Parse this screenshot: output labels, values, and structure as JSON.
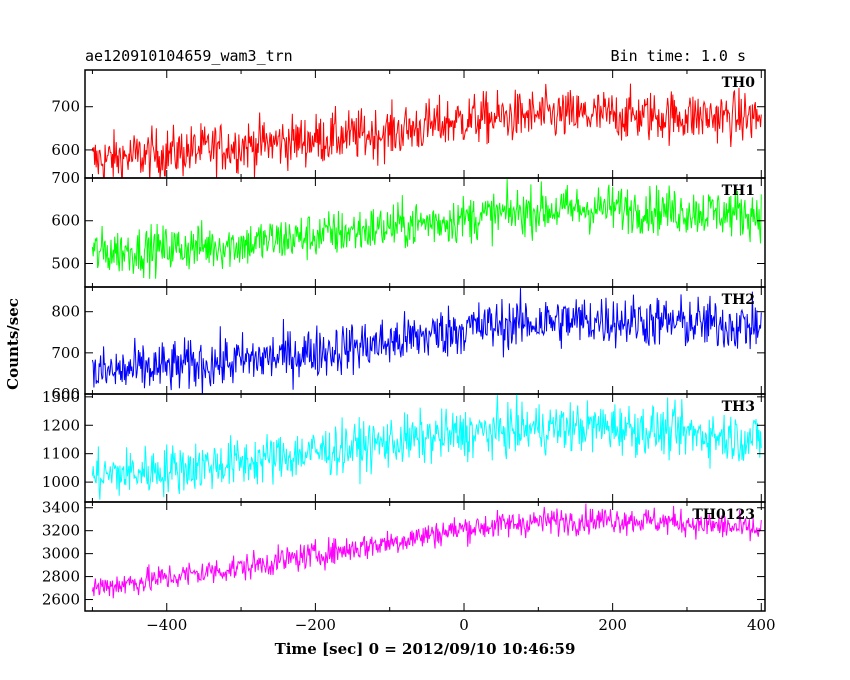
{
  "header": {
    "title": "ae120910104659_wam3_trn",
    "bin_time": "Bin time: 1.0 s"
  },
  "chart_data": {
    "type": "line",
    "xlabel": "Time [sec] 0 = 2012/09/10 10:46:59",
    "ylabel": "Counts/sec",
    "xlim": [
      -510,
      405
    ],
    "x_ticks": [
      -400,
      -200,
      0,
      200,
      400
    ],
    "x_tick_labels": [
      "−400",
      "−200",
      "0",
      "200",
      "400"
    ],
    "x_range": [
      -500,
      400
    ],
    "grid": false,
    "panels": [
      {
        "name": "TH0",
        "color": "#ff0000",
        "ylim": [
          535,
          785
        ],
        "y_ticks": [
          600,
          700
        ],
        "y_tick_labels": [
          "600",
          "700"
        ],
        "trend": [
          [
            -500,
            575
          ],
          [
            -300,
            610
          ],
          [
            -100,
            640
          ],
          [
            0,
            670
          ],
          [
            100,
            680
          ],
          [
            200,
            680
          ],
          [
            400,
            675
          ]
        ],
        "noise": 30
      },
      {
        "name": "TH1",
        "color": "#00ff00",
        "ylim": [
          445,
          700
        ],
        "y_ticks": [
          500,
          600,
          700
        ],
        "y_tick_labels": [
          "500",
          "600",
          "700"
        ],
        "trend": [
          [
            -500,
            525
          ],
          [
            -300,
            545
          ],
          [
            -100,
            585
          ],
          [
            0,
            605
          ],
          [
            100,
            625
          ],
          [
            200,
            630
          ],
          [
            400,
            615
          ]
        ],
        "noise": 28
      },
      {
        "name": "TH2",
        "color": "#0000ff",
        "ylim": [
          600,
          860
        ],
        "y_ticks": [
          600,
          700,
          800
        ],
        "y_tick_labels": [
          "600",
          "700",
          "800"
        ],
        "trend": [
          [
            -500,
            650
          ],
          [
            -300,
            680
          ],
          [
            -100,
            725
          ],
          [
            0,
            760
          ],
          [
            100,
            775
          ],
          [
            200,
            780
          ],
          [
            400,
            765
          ]
        ],
        "noise": 32
      },
      {
        "name": "TH3",
        "color": "#00ffff",
        "ylim": [
          930,
          1310
        ],
        "y_ticks": [
          1000,
          1100,
          1200,
          1300
        ],
        "y_tick_labels": [
          "1000",
          "1100",
          "1200",
          "1300"
        ],
        "trend": [
          [
            -500,
            1020
          ],
          [
            -300,
            1070
          ],
          [
            -100,
            1140
          ],
          [
            0,
            1170
          ],
          [
            100,
            1190
          ],
          [
            200,
            1195
          ],
          [
            400,
            1150
          ]
        ],
        "noise": 45
      },
      {
        "name": "TH0123",
        "color": "#ff00ff",
        "ylim": [
          2500,
          3450
        ],
        "y_ticks": [
          2600,
          2800,
          3000,
          3200,
          3400
        ],
        "y_tick_labels": [
          "2600",
          "2800",
          "3000",
          "3200",
          "3400"
        ],
        "trend": [
          [
            -500,
            2700
          ],
          [
            -300,
            2880
          ],
          [
            -100,
            3100
          ],
          [
            0,
            3220
          ],
          [
            100,
            3280
          ],
          [
            200,
            3300
          ],
          [
            300,
            3270
          ],
          [
            400,
            3200
          ]
        ],
        "noise": 60
      }
    ]
  }
}
